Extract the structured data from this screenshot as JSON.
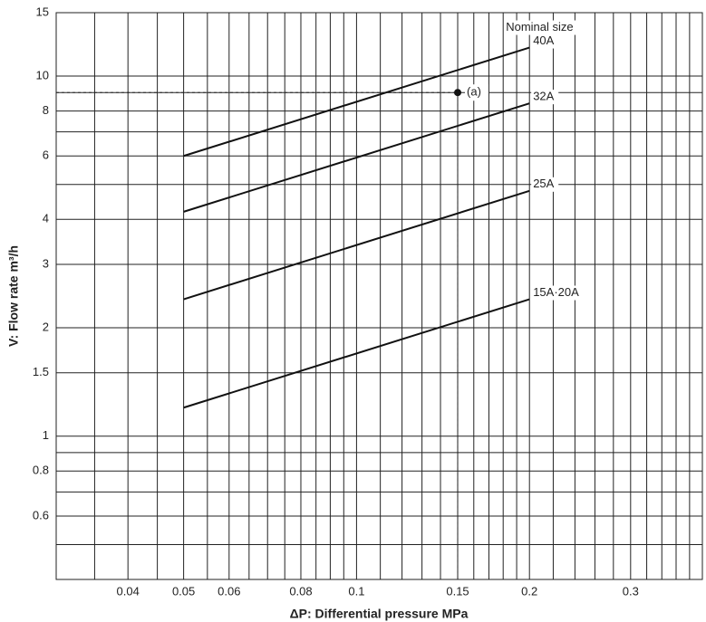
{
  "chart_data": {
    "type": "line",
    "legend_title": "Nominal size",
    "xlabel": "ΔP: Differential pressure MPa",
    "ylabel": "V: Flow rate m³/h",
    "x": [
      0.05,
      0.2
    ],
    "series": [
      {
        "name": "40A",
        "color": "#111111",
        "values": [
          6,
          12
        ]
      },
      {
        "name": "32A",
        "color": "#111111",
        "values": [
          4.2,
          8.4
        ]
      },
      {
        "name": "25A",
        "color": "#111111",
        "values": [
          2.4,
          4.8
        ]
      },
      {
        "name": "15A·20A",
        "color": "#111111",
        "values": [
          1.2,
          2.4
        ]
      }
    ],
    "annotation": {
      "label": "(a)",
      "x": 0.15,
      "y": 9
    },
    "xscale": "log",
    "yscale": "log",
    "xlim": [
      0.03,
      0.4
    ],
    "ylim": [
      0.4,
      15
    ],
    "xticks": [
      0.04,
      0.05,
      0.06,
      0.08,
      0.1,
      0.15,
      0.2,
      0.3
    ],
    "yticks": [
      0.6,
      0.8,
      1,
      1.5,
      2,
      3,
      4,
      6,
      8,
      10,
      15
    ],
    "xminor": [
      0.035,
      0.045,
      0.055,
      0.065,
      0.07,
      0.075,
      0.085,
      0.09,
      0.095,
      0.11,
      0.12,
      0.13,
      0.14,
      0.16,
      0.17,
      0.18,
      0.19,
      0.22,
      0.24,
      0.26,
      0.28,
      0.32,
      0.34,
      0.36,
      0.38
    ],
    "yminor": [
      0.5,
      0.7,
      0.9,
      5,
      7,
      9
    ],
    "grid": true
  }
}
